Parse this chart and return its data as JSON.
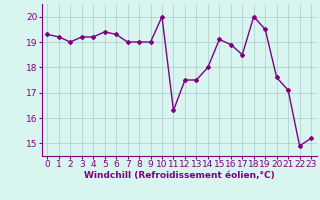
{
  "hours": [
    0,
    1,
    2,
    3,
    4,
    5,
    6,
    7,
    8,
    9,
    10,
    11,
    12,
    13,
    14,
    15,
    16,
    17,
    18,
    19,
    20,
    21,
    22,
    23
  ],
  "values": [
    19.3,
    19.2,
    19.0,
    19.2,
    19.2,
    19.4,
    19.3,
    19.0,
    19.0,
    19.0,
    20.0,
    16.3,
    17.5,
    17.5,
    18.0,
    19.1,
    18.9,
    18.5,
    20.0,
    19.5,
    17.6,
    17.1,
    14.9,
    15.2
  ],
  "line_color": "#800080",
  "marker": "D",
  "marker_size": 2,
  "bg_color": "#d8f5f0",
  "grid_color": "#aacccc",
  "xlabel": "Windchill (Refroidissement éolien,°C)",
  "ylim": [
    14.5,
    20.5
  ],
  "xlim": [
    -0.5,
    23.5
  ],
  "yticks": [
    15,
    16,
    17,
    18,
    19,
    20
  ],
  "xticks": [
    0,
    1,
    2,
    3,
    4,
    5,
    6,
    7,
    8,
    9,
    10,
    11,
    12,
    13,
    14,
    15,
    16,
    17,
    18,
    19,
    20,
    21,
    22,
    23
  ],
  "xlabel_fontsize": 6.5,
  "tick_fontsize": 6.5,
  "line_width": 1.0
}
